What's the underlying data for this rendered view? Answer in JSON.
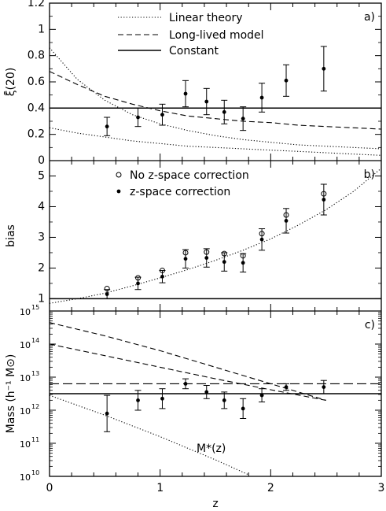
{
  "chart_data": [
    {
      "type": "line",
      "panel_label": "a)",
      "ylabel": "ξ̄(20)",
      "xlim": [
        0,
        3
      ],
      "ylim": [
        0,
        1.2
      ],
      "yticks": [
        0,
        0.2,
        0.4,
        0.6,
        0.8,
        1,
        1.2
      ],
      "ytick_labels": [
        "0",
        "0.2",
        "0.4",
        "0.6",
        "0.8",
        "1",
        "1.2"
      ],
      "legend": [
        "Linear theory",
        "Long-lived model",
        "Constant"
      ],
      "legend_position": "top",
      "series": [
        {
          "name": "Linear theory",
          "style": "dotted",
          "x": [
            0,
            0.25,
            0.5,
            0.75,
            1,
            1.25,
            1.5,
            1.75,
            2,
            2.25,
            2.5,
            2.75,
            3
          ],
          "y": [
            0.86,
            0.62,
            0.46,
            0.35,
            0.28,
            0.23,
            0.19,
            0.16,
            0.14,
            0.12,
            0.11,
            0.1,
            0.09
          ]
        },
        {
          "style": "dotted",
          "x": [
            0,
            0.25,
            0.5,
            0.75,
            1,
            1.25,
            1.5,
            1.75,
            2,
            2.25,
            2.5,
            2.75,
            3
          ],
          "y": [
            0.25,
            0.21,
            0.18,
            0.15,
            0.13,
            0.11,
            0.1,
            0.09,
            0.08,
            0.07,
            0.06,
            0.05,
            0.04
          ]
        },
        {
          "name": "Long-lived model",
          "style": "dashed",
          "x": [
            0,
            0.25,
            0.5,
            0.75,
            1,
            1.25,
            1.5,
            1.75,
            2,
            2.25,
            2.5,
            2.75,
            3
          ],
          "y": [
            0.68,
            0.58,
            0.49,
            0.43,
            0.38,
            0.34,
            0.32,
            0.3,
            0.29,
            0.27,
            0.26,
            0.25,
            0.24
          ]
        },
        {
          "name": "Constant",
          "style": "solid",
          "x": [
            0,
            3
          ],
          "y": [
            0.4,
            0.4
          ]
        }
      ],
      "points": [
        {
          "x": 0.52,
          "y": 0.26,
          "err": 0.07
        },
        {
          "x": 0.8,
          "y": 0.33,
          "err": 0.07
        },
        {
          "x": 1.02,
          "y": 0.35,
          "err": 0.08
        },
        {
          "x": 1.23,
          "y": 0.51,
          "err": 0.1
        },
        {
          "x": 1.42,
          "y": 0.45,
          "err": 0.1
        },
        {
          "x": 1.58,
          "y": 0.37,
          "err": 0.09
        },
        {
          "x": 1.75,
          "y": 0.32,
          "err": 0.09
        },
        {
          "x": 1.92,
          "y": 0.48,
          "err": 0.11
        },
        {
          "x": 2.14,
          "y": 0.61,
          "err": 0.12
        },
        {
          "x": 2.48,
          "y": 0.7,
          "err": 0.17
        }
      ]
    },
    {
      "type": "scatter",
      "panel_label": "b)",
      "ylabel": "bias",
      "xlim": [
        0,
        3
      ],
      "ylim": [
        0.6,
        5.5
      ],
      "yticks": [
        1,
        2,
        3,
        4,
        5
      ],
      "ytick_labels": [
        "1",
        "2",
        "3",
        "4",
        "5"
      ],
      "legend": [
        "No z-space correction",
        "z-space correction"
      ],
      "legend_position": "top",
      "series": [
        {
          "name": "No z-space correction",
          "marker": "open-circle",
          "x": [
            0.52,
            0.8,
            1.02,
            1.23,
            1.42,
            1.58,
            1.75,
            1.92,
            2.14,
            2.48
          ],
          "y": [
            1.33,
            1.68,
            1.92,
            2.5,
            2.52,
            2.47,
            2.4,
            3.12,
            3.73,
            4.42
          ]
        },
        {
          "name": "z-space correction",
          "marker": "filled-circle",
          "x": [
            0.52,
            0.8,
            1.02,
            1.23,
            1.42,
            1.58,
            1.75,
            1.92,
            2.14,
            2.48
          ],
          "y": [
            1.15,
            1.5,
            1.72,
            2.3,
            2.33,
            2.2,
            2.17,
            2.93,
            3.54,
            4.23
          ],
          "err": [
            0.15,
            0.2,
            0.2,
            0.3,
            0.3,
            0.3,
            0.3,
            0.35,
            0.4,
            0.5
          ]
        },
        {
          "style": "dotted",
          "x": [
            0,
            0.25,
            0.5,
            0.75,
            1,
            1.25,
            1.5,
            1.75,
            2,
            2.25,
            2.5,
            2.75,
            3
          ],
          "y": [
            0.85,
            1.0,
            1.18,
            1.42,
            1.68,
            1.95,
            2.25,
            2.58,
            2.95,
            3.4,
            3.9,
            4.5,
            5.25
          ]
        },
        {
          "style": "solid",
          "x": [
            0,
            3
          ],
          "y": [
            1,
            1
          ]
        }
      ]
    },
    {
      "type": "line",
      "panel_label": "c)",
      "ylabel": "Mass (h⁻¹ M⊙)",
      "xlabel": "z",
      "xlim": [
        0,
        3
      ],
      "log_y": true,
      "ylim_log10": [
        10,
        15
      ],
      "yticks_log10": [
        10,
        11,
        12,
        13,
        14,
        15
      ],
      "ytick_base": "10",
      "ytick_exponents": [
        "10",
        "11",
        "12",
        "13",
        "14",
        "15"
      ],
      "xticks": [
        0,
        1,
        2,
        3
      ],
      "xtick_labels": [
        "0",
        "1",
        "2",
        "3"
      ],
      "annotation": "M*(z)",
      "series": [
        {
          "style": "dashed",
          "x": [
            0,
            0.5,
            1,
            1.5,
            2,
            2.5
          ],
          "log10_y": [
            14.65,
            14.25,
            13.8,
            13.3,
            12.8,
            12.3
          ]
        },
        {
          "style": "dashed",
          "x": [
            0,
            0.5,
            1,
            1.5,
            2,
            2.5
          ],
          "log10_y": [
            14.0,
            13.65,
            13.3,
            12.95,
            12.62,
            12.3
          ]
        },
        {
          "style": "long-dashed",
          "x": [
            0,
            3
          ],
          "log10_y": [
            12.8,
            12.8
          ]
        },
        {
          "style": "solid",
          "x": [
            0,
            3
          ],
          "log10_y": [
            12.5,
            12.5
          ]
        },
        {
          "name": "M*(z)",
          "style": "dotted",
          "x": [
            0,
            0.5,
            1,
            1.5,
            1.8
          ],
          "log10_y": [
            12.45,
            11.85,
            11.2,
            10.5,
            10.05
          ]
        }
      ],
      "points": [
        {
          "x": 0.52,
          "log10_y": 11.9,
          "err": 0.55
        },
        {
          "x": 0.8,
          "log10_y": 12.3,
          "err": 0.3
        },
        {
          "x": 1.02,
          "log10_y": 12.35,
          "err": 0.3
        },
        {
          "x": 1.23,
          "log10_y": 12.8,
          "err": 0.15
        },
        {
          "x": 1.42,
          "log10_y": 12.55,
          "err": 0.2
        },
        {
          "x": 1.58,
          "log10_y": 12.3,
          "err": 0.25
        },
        {
          "x": 1.75,
          "log10_y": 12.05,
          "err": 0.3
        },
        {
          "x": 1.92,
          "log10_y": 12.45,
          "err": 0.2
        },
        {
          "x": 2.14,
          "log10_y": 12.7,
          "err": 0.1
        },
        {
          "x": 2.48,
          "log10_y": 12.7,
          "err": 0.2
        }
      ]
    }
  ]
}
